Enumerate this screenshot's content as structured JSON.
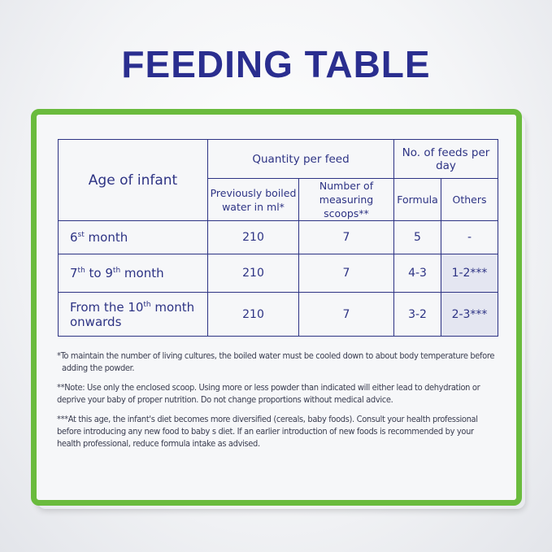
{
  "title": "FEEDING TABLE",
  "table": {
    "age_header": "Age of infant",
    "quantity_header": "Quantity per feed",
    "feeds_header": "No. of feeds per day",
    "sub_headers": {
      "water": "Previously boiled water in ml*",
      "scoops": "Number of measuring scoops**",
      "formula": "Formula",
      "others": "Others"
    },
    "rows": [
      {
        "age_pre": "6",
        "age_sup": "st",
        "age_post": " month",
        "water": "210",
        "scoops": "7",
        "formula": "5",
        "others": "-"
      },
      {
        "age_pre": "7",
        "age_sup": "th",
        "age_mid": " to 9",
        "age_sup2": "th",
        "age_post": " month",
        "water": "210",
        "scoops": "7",
        "formula": "4-3",
        "others": "1-2***"
      },
      {
        "age_pre": "From the 10",
        "age_sup": "th",
        "age_post": " month",
        "age_line2": "onwards",
        "water": "210",
        "scoops": "7",
        "formula": "3-2",
        "others": "2-3***"
      }
    ]
  },
  "notes": {
    "note1": "*To maintain the number of living cultures, the boiled water must be cooled down to about body temperature before",
    "note1b": "adding the powder.",
    "note2": "**Note: Use only the enclosed scoop. Using more or less powder than indicated will either lead to dehydration or",
    "note2b": "deprive your baby of proper nutrition. Do not change proportions without medical advice.",
    "note3": "***At this age, the infant's diet becomes more diversified (cereals, baby foods). Consult your health professional",
    "note3b": "before introducing any new food to baby s diet. If an earlier introduction of new foods is recommended by your",
    "note3c": "health professional, reduce formula intake as advised."
  },
  "colors": {
    "title": "#2a2e8f",
    "border": "#6abb3d",
    "table_text": "#2d3384",
    "shaded_cell": "#e4e6f1"
  }
}
